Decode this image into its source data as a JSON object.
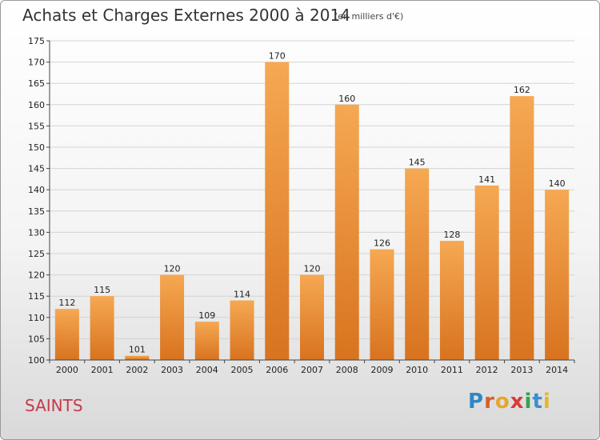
{
  "header": {
    "title": "Achats et Charges Externes 2000 à 2014",
    "subtitle": "(en milliers d'€)"
  },
  "footer": {
    "place": "SAINTS",
    "logo_letters": [
      "P",
      "r",
      "o",
      "x",
      "i",
      "t",
      "i"
    ],
    "logo_colors": [
      "#2e86c8",
      "#d5602a",
      "#e9a52b",
      "#d83a3a",
      "#35a24a",
      "#3a8fd0",
      "#e8b42a"
    ]
  },
  "colors": {
    "bar_top": "#f6a852",
    "bar_bottom": "#d8731f",
    "grid": "#d4d4d4",
    "axis": "#444444"
  },
  "chart_data": {
    "type": "bar",
    "categories": [
      "2000",
      "2001",
      "2002",
      "2003",
      "2004",
      "2005",
      "2006",
      "2007",
      "2008",
      "2009",
      "2010",
      "2011",
      "2012",
      "2013",
      "2014"
    ],
    "values": [
      112,
      115,
      101,
      120,
      109,
      114,
      170,
      120,
      160,
      126,
      145,
      128,
      141,
      162,
      140
    ],
    "ylim": [
      100,
      175
    ],
    "yticks": [
      100,
      105,
      110,
      115,
      120,
      125,
      130,
      135,
      140,
      145,
      150,
      155,
      160,
      165,
      170,
      175
    ],
    "grid": true,
    "data_labels": true
  }
}
